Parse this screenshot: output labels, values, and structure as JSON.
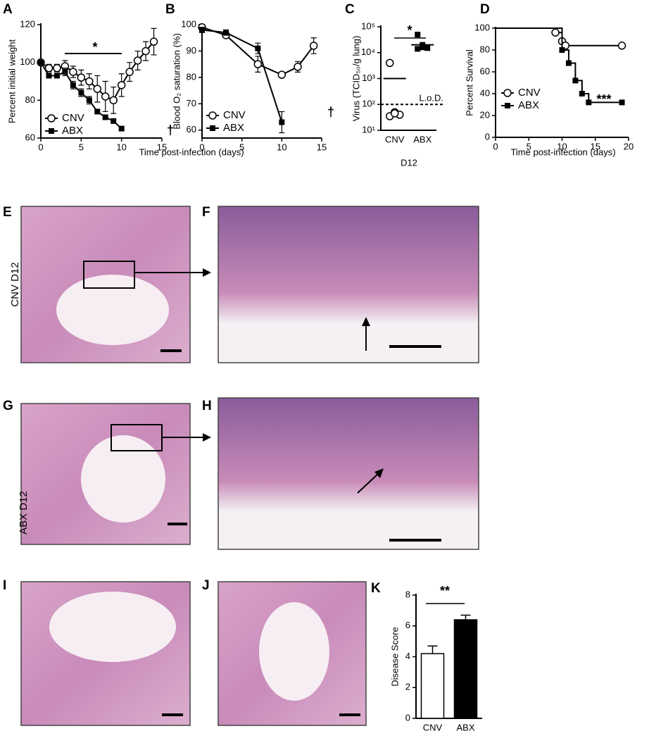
{
  "chart_data": [
    {
      "panel": "A",
      "type": "line",
      "ylabel": "Percent initial weight",
      "xlabel": "Time post-infection (days)",
      "xlim": [
        0,
        15
      ],
      "xticks": [
        0,
        5,
        10,
        15
      ],
      "ylim": [
        60,
        120
      ],
      "yticks": [
        60,
        80,
        100,
        120
      ],
      "legend": "lower left",
      "annotations": [
        "*",
        "†"
      ],
      "series": [
        {
          "name": "CNV",
          "marker": "open-circle",
          "color": "#000000",
          "x": [
            0,
            1,
            2,
            3,
            4,
            5,
            6,
            7,
            8,
            9,
            10,
            11,
            12,
            13,
            14
          ],
          "values": [
            100,
            97,
            97,
            98,
            95,
            92,
            90,
            86,
            82,
            80,
            88,
            95,
            101,
            106,
            111
          ],
          "errors": [
            0,
            2,
            2,
            3,
            3,
            4,
            4,
            7,
            8,
            7,
            6,
            5,
            5,
            5,
            7
          ]
        },
        {
          "name": "ABX",
          "marker": "filled-square",
          "color": "#000000",
          "x": [
            0,
            1,
            2,
            3,
            4,
            5,
            6,
            7,
            8,
            9,
            10
          ],
          "values": [
            100,
            93,
            93,
            95,
            88,
            84,
            80,
            74,
            71,
            69,
            65
          ],
          "errors": [
            0,
            1,
            1,
            2,
            2,
            2,
            2,
            1,
            1,
            1,
            1
          ]
        }
      ]
    },
    {
      "panel": "B",
      "type": "line",
      "ylabel": "Blood O₂ saturation (%)",
      "xlim": [
        0,
        15
      ],
      "xticks": [
        0,
        5,
        10,
        15
      ],
      "ylim": [
        57,
        100
      ],
      "yticks": [
        60,
        70,
        80,
        90,
        100
      ],
      "legend": "lower left",
      "annotations": [
        "†"
      ],
      "series": [
        {
          "name": "CNV",
          "marker": "open-circle",
          "color": "#000000",
          "x": [
            0,
            3,
            7,
            10,
            12,
            14
          ],
          "values": [
            99,
            96,
            85,
            81,
            84,
            92
          ],
          "errors": [
            1,
            1,
            3,
            1,
            2,
            3
          ]
        },
        {
          "name": "ABX",
          "marker": "filled-square",
          "color": "#000000",
          "x": [
            0,
            3,
            7,
            10
          ],
          "values": [
            98,
            97,
            91,
            63
          ],
          "errors": [
            1,
            1,
            2,
            4
          ]
        }
      ]
    },
    {
      "panel": "C",
      "type": "strip",
      "ylabel": "Virus (TCID₅₀/g lung)",
      "xlabel": "D12",
      "log_scale": true,
      "ylim": [
        10,
        100000
      ],
      "yticks": [
        {
          "value": 10,
          "label": "10¹"
        },
        {
          "value": 100,
          "label": "10²"
        },
        {
          "value": 1000,
          "label": "10³"
        },
        {
          "value": 10000,
          "label": "10⁴"
        },
        {
          "value": 100000,
          "label": "10⁵"
        }
      ],
      "categories": [
        "CNV",
        "ABX"
      ],
      "markers": [
        "open-circle",
        "filled-square"
      ],
      "values": [
        [
          4000,
          50,
          40,
          35,
          45
        ],
        [
          50000,
          20000,
          15000,
          14000,
          16000
        ]
      ],
      "means": [
        1000,
        20000
      ],
      "reference_line": {
        "value": 100,
        "label": "L.o.D."
      },
      "annotations": [
        "*"
      ]
    },
    {
      "panel": "D",
      "type": "step",
      "ylabel": "Percent  Survival",
      "xlabel": "Time post-infection (days)",
      "xlim": [
        0,
        20
      ],
      "xticks": [
        0,
        5,
        10,
        15,
        20
      ],
      "ylim": [
        0,
        100
      ],
      "yticks": [
        0,
        20,
        40,
        60,
        80,
        100
      ],
      "legend": "center left",
      "annotations": [
        "***"
      ],
      "series": [
        {
          "name": "CNV",
          "marker": "open-circle",
          "color": "#000000",
          "x": [
            0,
            9,
            10,
            10.5,
            19
          ],
          "values": [
            100,
            96,
            88,
            84,
            84
          ]
        },
        {
          "name": "ABX",
          "marker": "filled-square",
          "color": "#000000",
          "x": [
            0,
            10,
            11,
            12,
            13,
            14,
            19
          ],
          "values": [
            100,
            80,
            68,
            52,
            40,
            32,
            32
          ]
        }
      ]
    },
    {
      "panel": "K",
      "type": "bar",
      "ylabel": "Disease Score",
      "categories": [
        "CNV",
        "ABX"
      ],
      "values": [
        4.2,
        6.4
      ],
      "errors": [
        0.5,
        0.3
      ],
      "colors": [
        "#ffffff",
        "#000000"
      ],
      "ylim": [
        0,
        8
      ],
      "yticks": [
        0,
        2,
        4,
        6,
        8
      ],
      "annotations": [
        "**"
      ]
    }
  ],
  "images": [
    {
      "panel": "E"
    },
    {
      "panel": "F"
    },
    {
      "panel": "G"
    },
    {
      "panel": "H"
    },
    {
      "panel": "I"
    },
    {
      "panel": "J"
    }
  ],
  "row_labels": [
    "CNV D12",
    "ABX D12"
  ]
}
